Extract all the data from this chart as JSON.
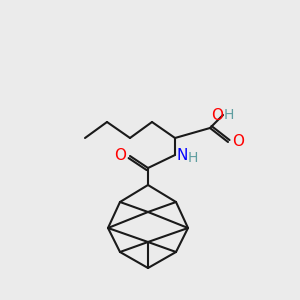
{
  "bg_color": "#ebebeb",
  "bond_color": "#1a1a1a",
  "bond_width": 1.5,
  "atom_colors": {
    "O": "#ff0000",
    "N": "#0000ff",
    "H_OH": "#5f9ea0",
    "H_NH": "#5f9ea0"
  },
  "font_size_atoms": 11,
  "font_size_H": 10
}
